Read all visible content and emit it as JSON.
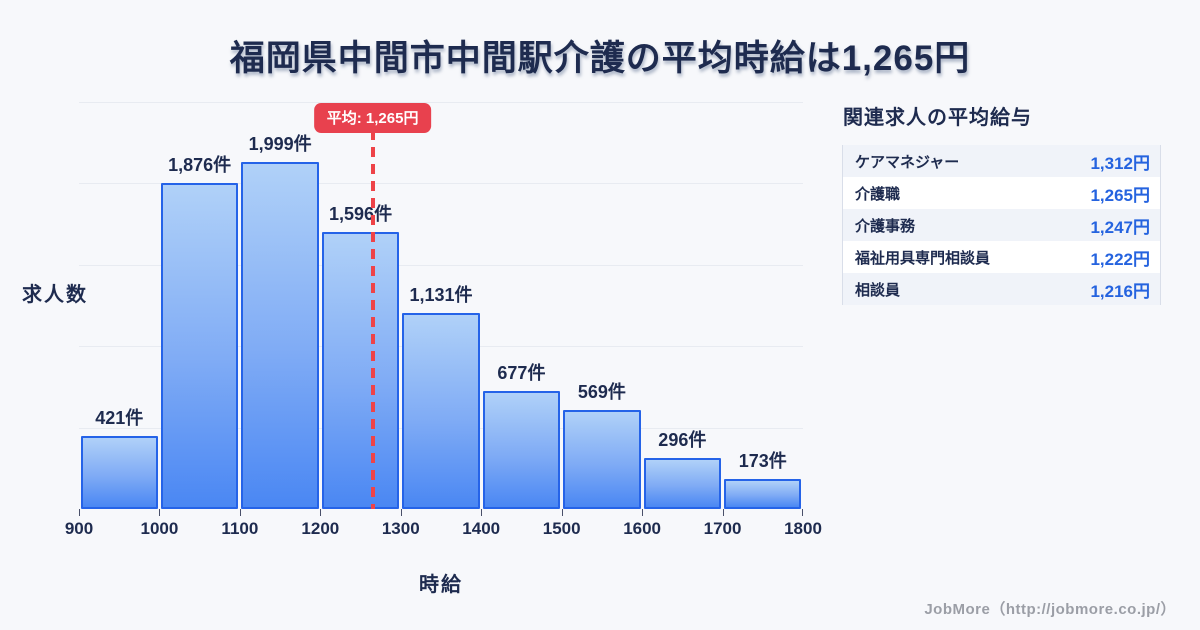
{
  "title": "福岡県中間市中間駅介護の平均時給は1,265円",
  "chart_data": {
    "type": "bar",
    "title": "福岡県中間市中間駅介護の平均時給は1,265円",
    "xlabel": "時給",
    "ylabel": "求人数",
    "bin_edges": [
      900,
      1000,
      1100,
      1200,
      1300,
      1400,
      1500,
      1600,
      1700,
      1800
    ],
    "values": [
      421,
      1876,
      1999,
      1596,
      1131,
      677,
      569,
      296,
      173
    ],
    "bar_labels": [
      "421件",
      "1,876件",
      "1,999件",
      "1,596件",
      "1,131件",
      "677件",
      "569件",
      "296件",
      "173件"
    ],
    "average": 1265,
    "average_label": "平均: 1,265円",
    "xlim": [
      900,
      1800
    ],
    "ylim": [
      0,
      2344
    ],
    "grid": true,
    "gridline_divisions": 5,
    "legend": "none",
    "colors": {
      "bar_gradient_top": "#b0d1f8",
      "bar_gradient_bottom": "#4a87f3",
      "bar_border": "#2563e8",
      "average_marker": "#e8414e",
      "text": "#1e2b4f",
      "background": "#f7f8fb"
    }
  },
  "side_panel": {
    "heading": "関連求人の平均給与",
    "rows": [
      {
        "label": "ケアマネジャー",
        "value": "1,312円"
      },
      {
        "label": "介護職",
        "value": "1,265円"
      },
      {
        "label": "介護事務",
        "value": "1,247円"
      },
      {
        "label": "福祉用具専門相談員",
        "value": "1,222円"
      },
      {
        "label": "相談員",
        "value": "1,216円"
      }
    ],
    "value_color": "#2563df"
  },
  "footer": {
    "credit": "JobMore（http://jobmore.co.jp/）"
  }
}
